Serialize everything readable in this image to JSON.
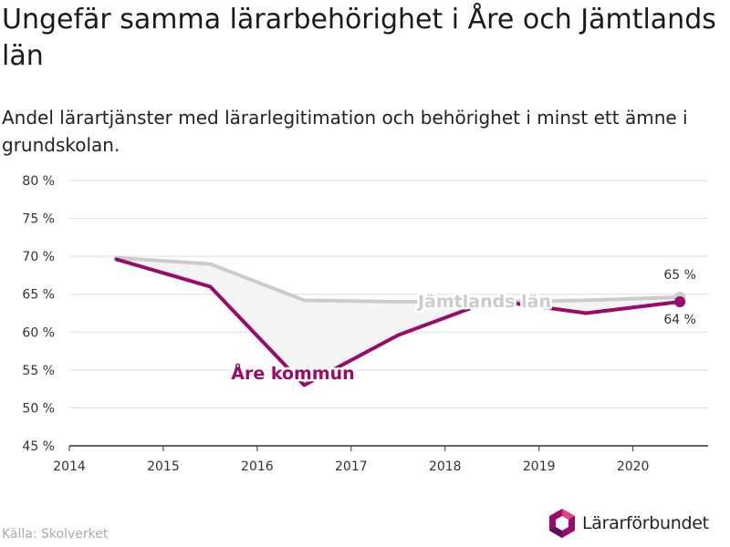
{
  "header": {
    "title": "Ungefär samma lärarbehörighet i Åre och Jämtlands län",
    "subtitle": "Andel lärartjänster med lärarlegitimation och behörighet i minst ett ämne i grundskolan."
  },
  "footer": {
    "source": "Källa: Skolverket",
    "logo_text": "Lärarförbundet"
  },
  "colors": {
    "are": "#9b0a6b",
    "jamtland": "#cccccc",
    "fill": "#f4f4f4",
    "grid": "#dddddd",
    "axis": "#333333"
  },
  "chart_data": {
    "type": "line",
    "title": "Ungefär samma lärarbehörighet i Åre och Jämtlands län",
    "subtitle": "Andel lärartjänster med lärarlegitimation och behörighet i minst ett ämne i grundskolan.",
    "xlim": [
      2014,
      2020.8
    ],
    "ylim": [
      45,
      80
    ],
    "x_ticks": [
      "2014",
      "2015",
      "2016",
      "2017",
      "2018",
      "2019",
      "2020"
    ],
    "y_ticks": [
      "45 %",
      "50 %",
      "55 %",
      "60 %",
      "65 %",
      "70 %",
      "75 %",
      "80 %"
    ],
    "grid": true,
    "series": [
      {
        "name": "Jämtlands län",
        "x": [
          2014.5,
          2015.5,
          2016.5,
          2017.5,
          2018.5,
          2019.5,
          2020.5
        ],
        "values": [
          69.8,
          69.0,
          64.2,
          64.0,
          64.0,
          64.2,
          64.6
        ],
        "end_label": "65 %"
      },
      {
        "name": "Åre kommun",
        "x": [
          2014.5,
          2015.5,
          2016.5,
          2017.5,
          2018.5,
          2019.5,
          2020.5
        ],
        "values": [
          69.6,
          66.0,
          53.0,
          59.6,
          64.2,
          62.5,
          64.0
        ],
        "end_label": "64 %"
      }
    ]
  }
}
